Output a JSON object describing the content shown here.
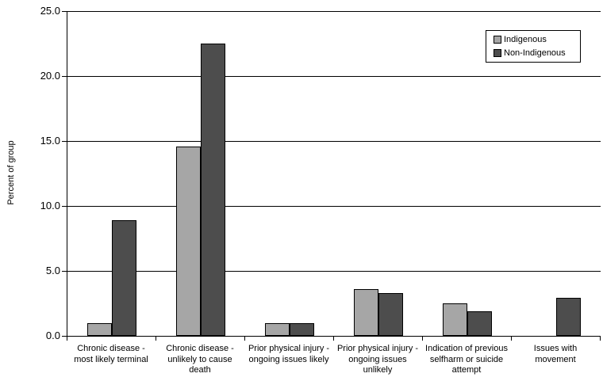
{
  "chart_data": {
    "type": "bar",
    "title": "",
    "xlabel": "",
    "ylabel": "Percent of group",
    "ylim": [
      0,
      25
    ],
    "ytick_labels": [
      "0.0",
      "5.0",
      "10.0",
      "15.0",
      "20.0",
      "25.0"
    ],
    "grid": "horizontal",
    "gridline_color": "#000000",
    "background": "#ffffff",
    "legend_position": "top-right",
    "categories": [
      "Chronic disease - most likely terminal",
      "Chronic disease - unlikely to cause death",
      "Prior physical injury - ongoing issues likely",
      "Prior physical injury - ongoing issues unlikely",
      "Indication of previous selfharm or suicide attempt",
      "Issues with movement"
    ],
    "category_tick_lines": [
      [
        "Chronic disease -",
        "most likely terminal"
      ],
      [
        "Chronic disease -",
        "unlikely to cause",
        "death"
      ],
      [
        "Prior physical injury -",
        "ongoing issues likely"
      ],
      [
        "Prior physical injury -",
        "ongoing issues",
        "unlikely"
      ],
      [
        "Indication of previous",
        "selfharm or suicide",
        "attempt"
      ],
      [
        "Issues with",
        "movement"
      ]
    ],
    "series": [
      {
        "name": "Indigenous",
        "color": "#a6a6a6",
        "values": [
          1.0,
          14.6,
          1.0,
          3.6,
          2.5,
          0.0
        ]
      },
      {
        "name": "Non-Indigenous",
        "color": "#4d4d4d",
        "values": [
          8.9,
          22.5,
          1.0,
          3.3,
          1.9,
          2.9
        ]
      }
    ],
    "bar_border_color": "#000000"
  }
}
